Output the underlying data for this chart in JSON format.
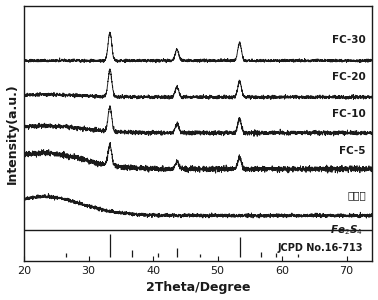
{
  "xlabel": "2Theta/Degree",
  "ylabel": "Intensity(a.u.)",
  "xlim": [
    20,
    74
  ],
  "x_ticks": [
    20,
    30,
    40,
    50,
    60,
    70
  ],
  "labels": [
    "FC-30",
    "FC-20",
    "FC-10",
    "FC-5",
    "生物炭"
  ],
  "offsets": [
    4.8,
    3.9,
    3.0,
    2.1,
    1.0
  ],
  "noise_seed": 42,
  "ref_peaks": [
    26.5,
    33.3,
    36.8,
    40.8,
    43.7,
    47.2,
    53.4,
    56.8,
    59.1,
    62.5
  ],
  "ref_peak_heights": [
    0.15,
    0.85,
    0.25,
    0.15,
    0.35,
    0.12,
    0.75,
    0.18,
    0.15,
    0.12
  ],
  "background_color": "#ffffff",
  "line_color": "#1a1a1a",
  "fontsize_label": 9,
  "fontsize_tick": 8,
  "fontsize_annot": 7.5
}
